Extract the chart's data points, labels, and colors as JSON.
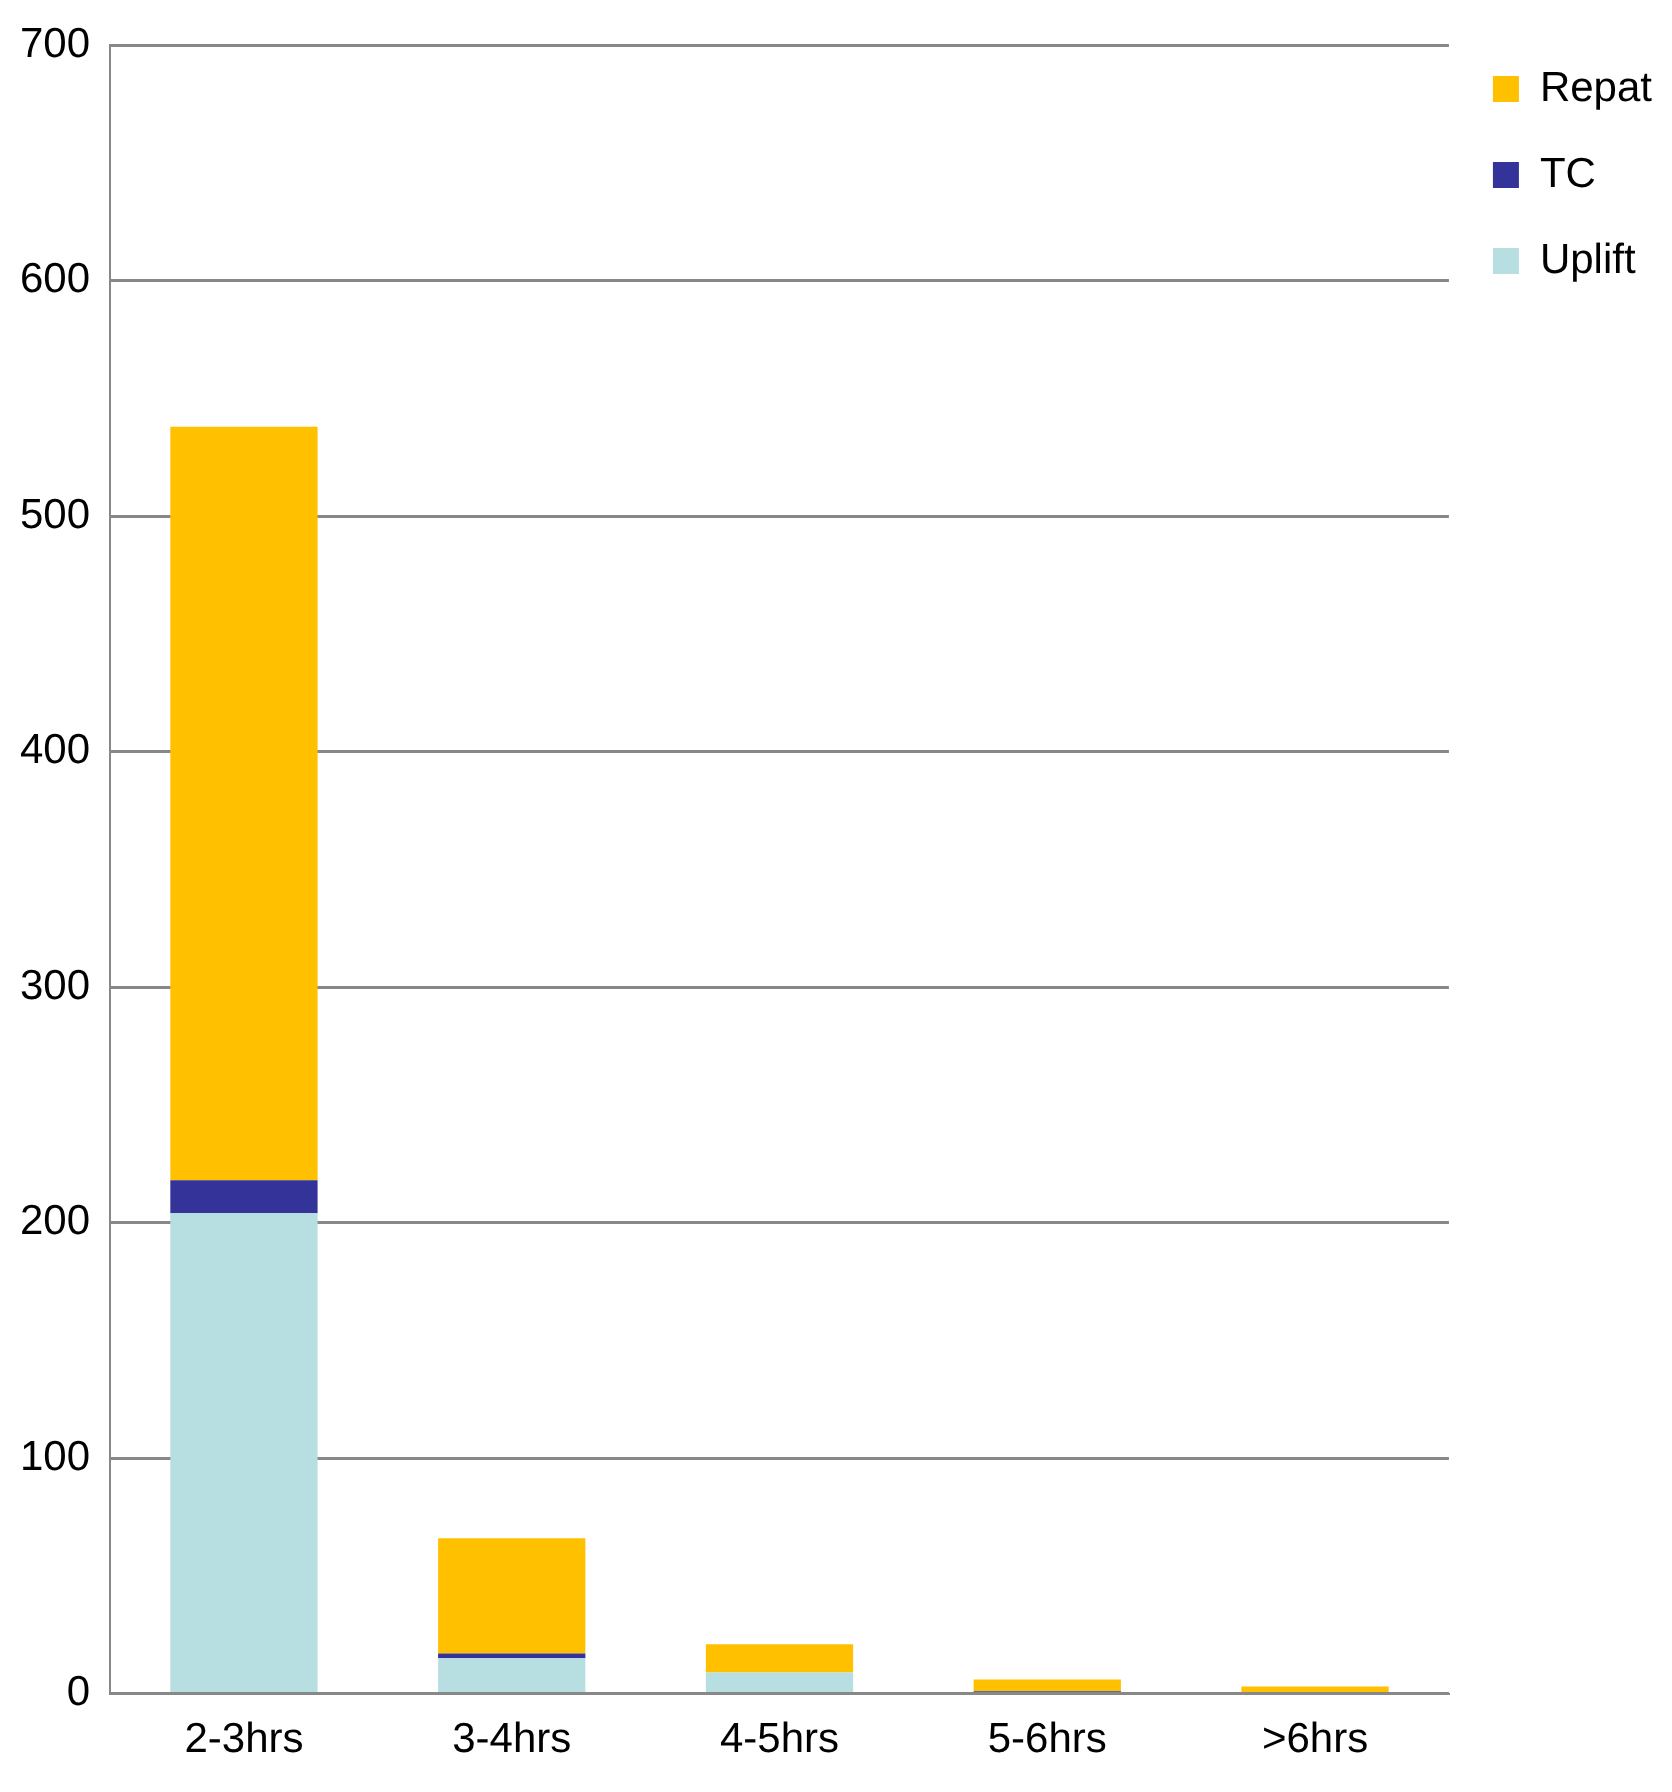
{
  "chart_data": {
    "type": "bar",
    "stacked": true,
    "categories": [
      "2-3hrs",
      "3-4hrs",
      "4-5hrs",
      "5-6hrs",
      ">6hrs"
    ],
    "series": [
      {
        "name": "Uplift",
        "color": "#b7dee1",
        "values": [
          204,
          15,
          9,
          null,
          null
        ]
      },
      {
        "name": "TC",
        "color": "#333399",
        "values": [
          14,
          2,
          0,
          1,
          0
        ]
      },
      {
        "name": "Repat",
        "color": "#ffc000",
        "values": [
          320,
          49,
          12,
          5,
          3
        ]
      }
    ],
    "ylim": [
      0,
      700
    ],
    "yticks": [
      0,
      100,
      200,
      300,
      400,
      500,
      600,
      700
    ],
    "grid": "y",
    "legend": "right"
  }
}
